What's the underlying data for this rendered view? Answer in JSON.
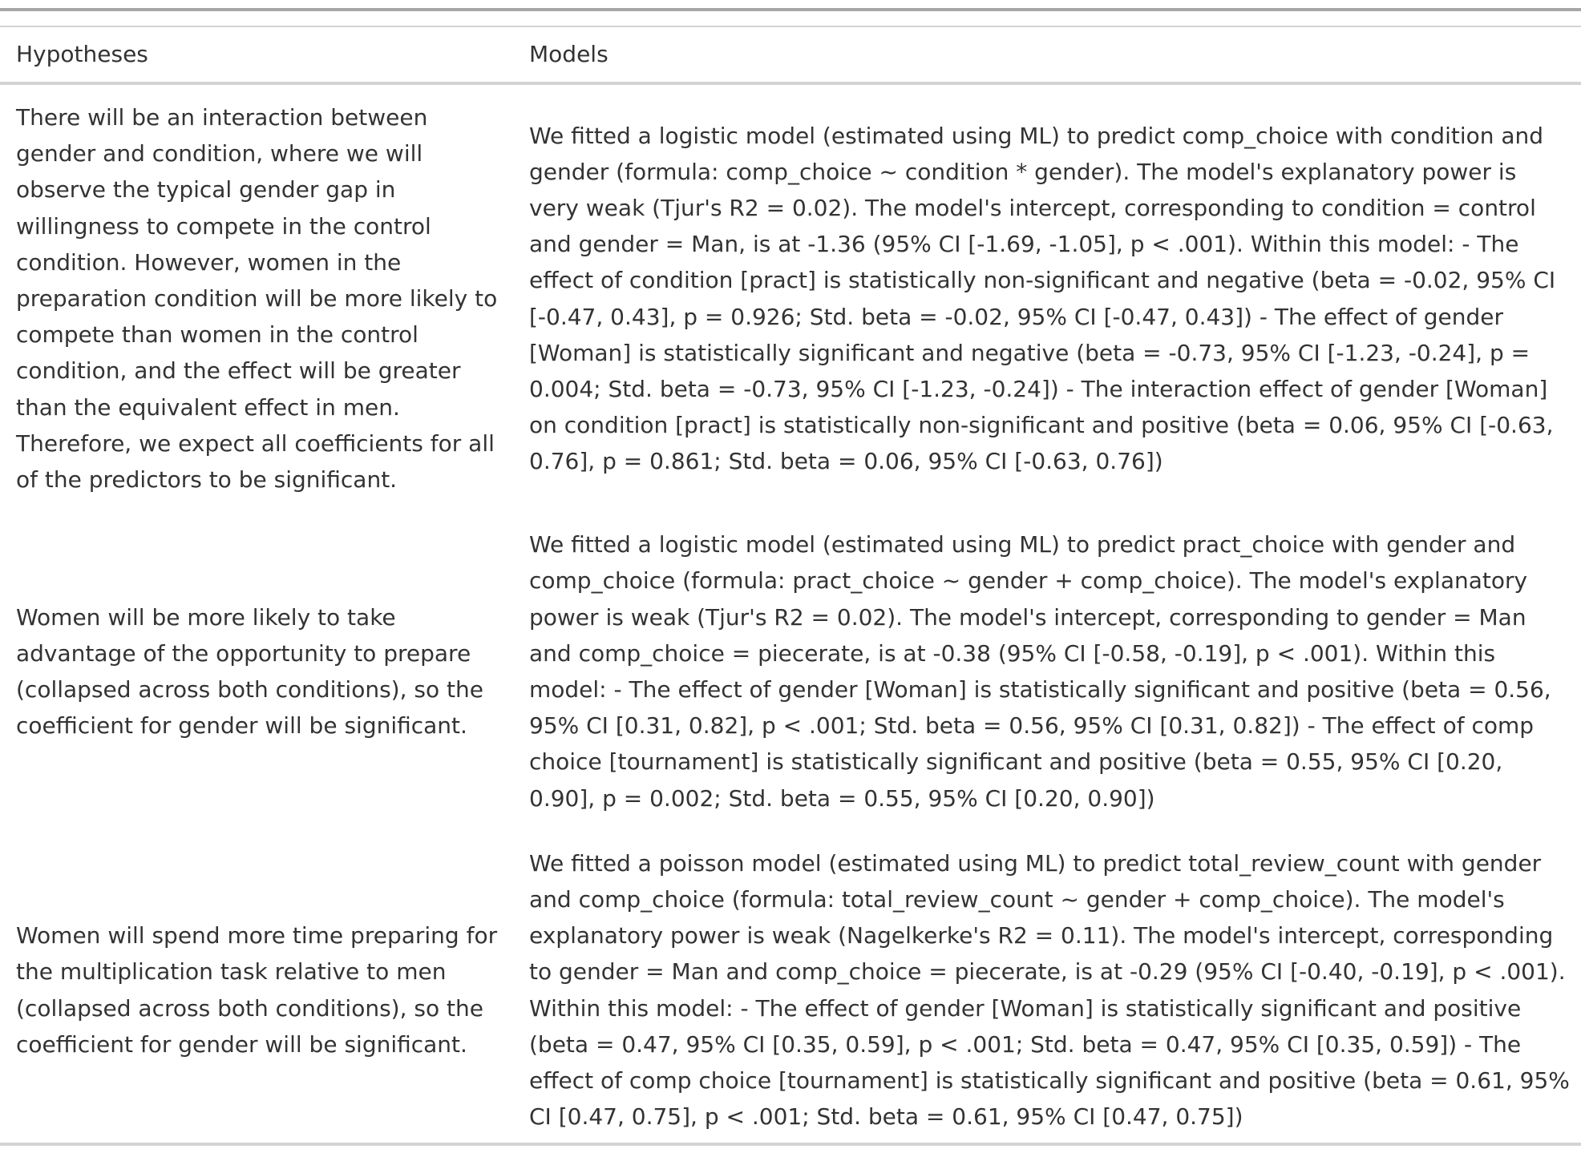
{
  "table": {
    "headers": {
      "hypotheses": "Hypotheses",
      "models": "Models"
    },
    "rows": [
      {
        "hypothesis": "There will be an interaction between gender and condition, where we will observe the typical gender gap in willingness to compete in the control condition. However, women in the preparation condition will be more likely to compete than women in the control condition, and the effect will be greater than the equivalent effect in men. Therefore, we expect all coefficients for all of the predictors to be significant.",
        "model": "We fitted a logistic model (estimated using ML) to predict comp_choice with condition and gender (formula: comp_choice ~ condition * gender). The model's explanatory power is very weak (Tjur's R2 = 0.02). The model's intercept, corresponding to condition = control and gender = Man, is at -1.36 (95% CI [-1.69, -1.05], p < .001). Within this model: - The effect of condition [pract] is statistically non-significant and negative (beta = -0.02, 95% CI [-0.47, 0.43], p = 0.926; Std. beta = -0.02, 95% CI [-0.47, 0.43]) - The effect of gender [Woman] is statistically significant and negative (beta = -0.73, 95% CI [-1.23, -0.24], p = 0.004; Std. beta = -0.73, 95% CI [-1.23, -0.24]) - The interaction effect of gender [Woman] on condition [pract] is statistically non-significant and positive (beta = 0.06, 95% CI [-0.63, 0.76], p = 0.861; Std. beta = 0.06, 95% CI [-0.63, 0.76])"
      },
      {
        "hypothesis": "Women will be more likely to take advantage of the opportunity to prepare (collapsed across both conditions), so the coefficient for gender will be significant.",
        "model": "We fitted a logistic model (estimated using ML) to predict pract_choice with gender and comp_choice (formula: pract_choice ~ gender + comp_choice). The model's explanatory power is weak (Tjur's R2 = 0.02). The model's intercept, corresponding to gender = Man and comp_choice = piecerate, is at -0.38 (95% CI [-0.58, -0.19], p < .001). Within this model: - The effect of gender [Woman] is statistically significant and positive (beta = 0.56, 95% CI [0.31, 0.82], p < .001; Std. beta = 0.56, 95% CI [0.31, 0.82]) - The effect of comp choice [tournament] is statistically significant and positive (beta = 0.55, 95% CI [0.20, 0.90], p = 0.002; Std. beta = 0.55, 95% CI [0.20, 0.90])"
      },
      {
        "hypothesis": "Women will spend more time preparing for the multiplication task relative to men (collapsed across both conditions), so the coefficient for gender will be significant.",
        "model": "We fitted a poisson model (estimated using ML) to predict total_review_count with gender and comp_choice (formula: total_review_count ~ gender + comp_choice). The model's explanatory power is weak (Nagelkerke's R2 = 0.11). The model's intercept, corresponding to gender = Man and comp_choice = piecerate, is at -0.29 (95% CI [-0.40, -0.19], p < .001). Within this model: - The effect of gender [Woman] is statistically significant and positive (beta = 0.47, 95% CI [0.35, 0.59], p < .001; Std. beta = 0.47, 95% CI [0.35, 0.59]) - The effect of comp choice [tournament] is statistically significant and positive (beta = 0.61, 95% CI [0.47, 0.75], p < .001; Std. beta = 0.61, 95% CI [0.47, 0.75])"
      }
    ]
  }
}
